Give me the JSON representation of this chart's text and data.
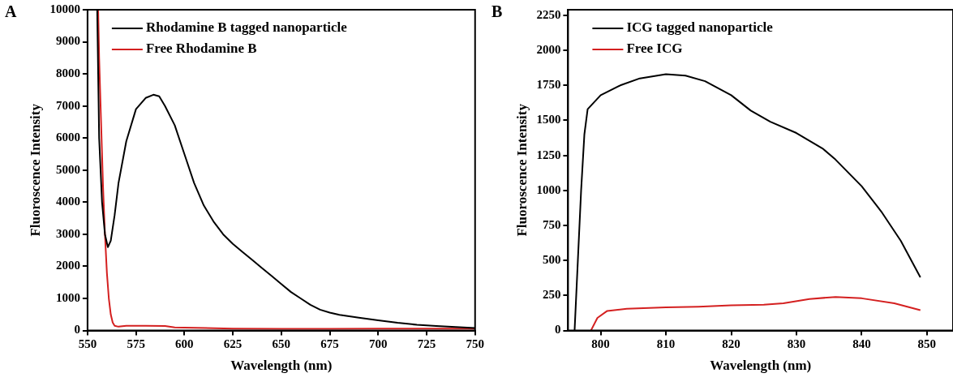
{
  "chart_data": [
    {
      "type": "line",
      "title": "A",
      "xlabel": "Wavelength (nm)",
      "ylabel": "Fluoroscence Intensity",
      "xlim": [
        550,
        750
      ],
      "xticks": [
        550,
        575,
        600,
        625,
        650,
        675,
        700,
        725,
        750
      ],
      "ylim": [
        0,
        10000
      ],
      "yticks": [
        0,
        1000,
        2000,
        3000,
        4000,
        5000,
        6000,
        7000,
        8000,
        9000,
        10000
      ],
      "grid": false,
      "legend": "top left",
      "marker": "none",
      "line_style": "solid",
      "series": [
        {
          "name": "Rhodamine B tagged nanoparticle",
          "color": "#000000",
          "x": [
            555,
            555.5,
            556,
            557.5,
            559,
            560.5,
            562,
            564,
            566,
            570,
            575,
            580,
            584,
            587,
            590,
            595,
            600,
            605,
            610,
            615,
            620,
            625,
            630,
            635,
            640,
            645,
            650,
            655,
            660,
            665,
            670,
            675,
            680,
            690,
            700,
            710,
            720,
            730,
            740,
            750
          ],
          "values": [
            10000,
            8000,
            6000,
            4000,
            3000,
            2600,
            2800,
            3600,
            4600,
            5900,
            6900,
            7250,
            7350,
            7300,
            7000,
            6400,
            5500,
            4600,
            3900,
            3400,
            3000,
            2700,
            2450,
            2200,
            1950,
            1700,
            1450,
            1200,
            1000,
            800,
            650,
            560,
            490,
            400,
            320,
            240,
            180,
            140,
            110,
            80
          ]
        },
        {
          "name": "Free Rhodamine B",
          "color": "#d42020",
          "x": [
            555.5,
            556,
            557,
            558,
            559,
            560,
            561,
            562,
            563,
            564,
            566,
            570,
            580,
            590,
            595,
            600,
            625,
            650,
            675,
            700,
            725,
            750
          ],
          "values": [
            10000,
            8500,
            6500,
            4500,
            3000,
            1800,
            1000,
            500,
            250,
            150,
            120,
            150,
            150,
            140,
            100,
            90,
            60,
            50,
            50,
            60,
            60,
            60
          ]
        }
      ]
    },
    {
      "type": "line",
      "title": "B",
      "xlabel": "Wavelength (nm)",
      "ylabel": "Fluoroscence Intensity",
      "xlim": [
        795,
        854
      ],
      "xticks": [
        800,
        810,
        820,
        830,
        840,
        850
      ],
      "ylim": [
        0,
        2290
      ],
      "yticks": [
        0,
        250,
        500,
        750,
        1000,
        1250,
        1500,
        1750,
        2000,
        2250
      ],
      "grid": false,
      "legend": "top left",
      "marker": "none",
      "line_style": "solid",
      "series": [
        {
          "name": "ICG tagged nanoparticle",
          "color": "#000000",
          "x": [
            796,
            796.5,
            797,
            797.5,
            798,
            800,
            803,
            806,
            810,
            813,
            816,
            820,
            823,
            826,
            830,
            834,
            836,
            840,
            843,
            846,
            849
          ],
          "values": [
            0,
            500,
            1000,
            1400,
            1580,
            1680,
            1750,
            1800,
            1830,
            1820,
            1780,
            1680,
            1570,
            1490,
            1410,
            1300,
            1220,
            1030,
            850,
            640,
            380
          ]
        },
        {
          "name": "Free ICG",
          "color": "#d42020",
          "x": [
            798.5,
            799.5,
            801,
            804,
            810,
            815,
            820,
            825,
            828,
            832,
            836,
            840,
            845,
            849
          ],
          "values": [
            0,
            90,
            140,
            155,
            165,
            170,
            180,
            185,
            195,
            225,
            240,
            230,
            195,
            145
          ]
        }
      ]
    }
  ]
}
